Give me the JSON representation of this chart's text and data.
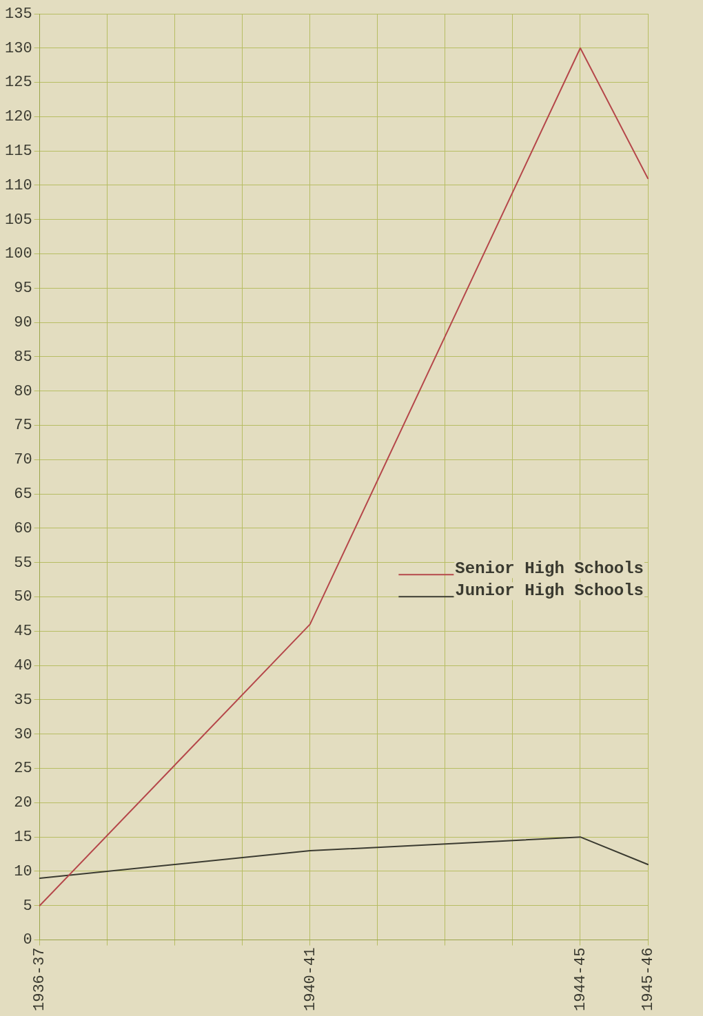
{
  "chart_data": {
    "type": "line",
    "categories": [
      "1936-37",
      null,
      null,
      null,
      "1940-41",
      null,
      null,
      null,
      "1944-45",
      "1945-46"
    ],
    "ylim": [
      0,
      135
    ],
    "yticks": [
      0,
      5,
      10,
      15,
      20,
      25,
      30,
      35,
      40,
      45,
      50,
      55,
      60,
      65,
      70,
      75,
      80,
      85,
      90,
      95,
      100,
      105,
      110,
      115,
      120,
      125,
      130,
      135
    ],
    "series": [
      {
        "name": "Senior High Schools",
        "color": "#b5474a",
        "values": [
          5,
          null,
          null,
          null,
          46,
          null,
          null,
          null,
          130,
          111
        ]
      },
      {
        "name": "Junior High Schools",
        "color": "#3a3a30",
        "values": [
          9,
          null,
          null,
          null,
          13,
          null,
          null,
          null,
          15,
          11
        ]
      }
    ],
    "grid": true,
    "legend": "right",
    "marker": "none",
    "line_style": "solid"
  }
}
